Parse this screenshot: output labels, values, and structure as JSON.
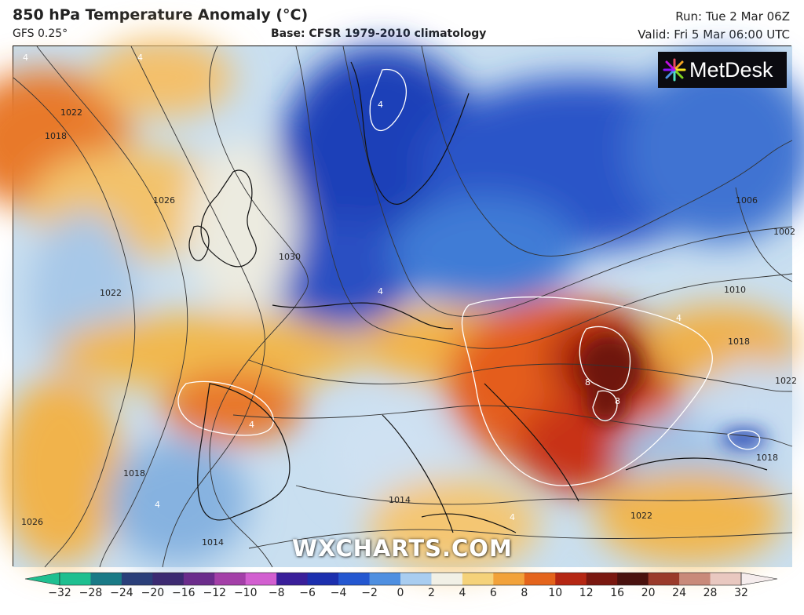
{
  "header": {
    "title": "850 hPa Temperature Anomaly (°C)",
    "model": "GFS 0.25°",
    "base": "Base: CFSR 1979-2010 climatology",
    "run": "Run: Tue 2 Mar 06Z",
    "valid": "Valid: Fri 5 Mar 06:00 UTC"
  },
  "brand": {
    "logo_text": "MetDesk",
    "logo_icon": "starburst-logo-icon"
  },
  "watermark": "WXCHARTS.COM",
  "colorbar": {
    "ticks": [
      "−32",
      "−28",
      "−24",
      "−20",
      "−16",
      "−12",
      "−10",
      "−8",
      "−6",
      "−4",
      "−2",
      "0",
      "2",
      "4",
      "6",
      "8",
      "10",
      "12",
      "16",
      "20",
      "24",
      "28",
      "32"
    ],
    "colors": [
      "#1fbf8f",
      "#1a7a86",
      "#2a3f7a",
      "#3b2a72",
      "#6a2c8c",
      "#a33fa8",
      "#d25fd0",
      "#3a1f9a",
      "#1c2fae",
      "#2457d0",
      "#4f8fe0",
      "#a9cdf0",
      "#f1f0e6",
      "#f5d27a",
      "#f2a23a",
      "#e4641c",
      "#b52714",
      "#7a1810",
      "#4a120e",
      "#9a3a2a",
      "#c98a7a",
      "#e9c8c0"
    ]
  },
  "map_labels": {
    "isobars": [
      "1022",
      "1018",
      "1026",
      "1030",
      "1022",
      "1018",
      "1026",
      "1014",
      "1014",
      "1022",
      "1010",
      "1018",
      "1006",
      "1002",
      "1022",
      "1018"
    ],
    "anomalies": [
      "4",
      "4",
      "4",
      "4",
      "4",
      "4",
      "8",
      "8",
      "4",
      "4"
    ]
  }
}
